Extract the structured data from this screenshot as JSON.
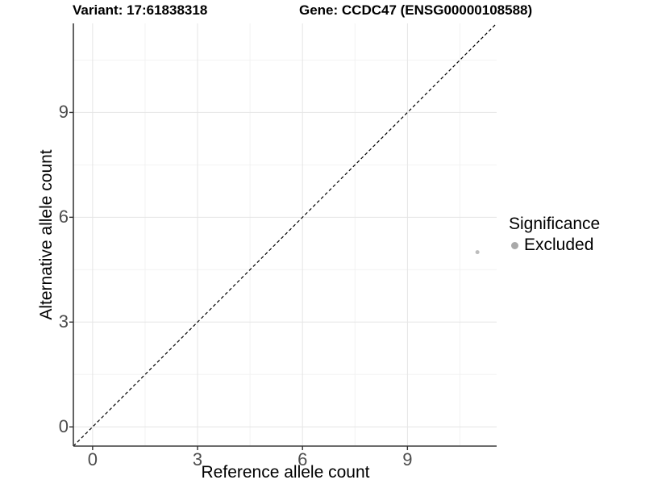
{
  "chart_data": {
    "type": "scatter",
    "titles": {
      "variant": "Variant: 17:61838318",
      "gene": "Gene: CCDC47 (ENSG00000108588)"
    },
    "xlabel": "Reference allele count",
    "ylabel": "Alternative allele count",
    "xlim": [
      -0.55,
      11.55
    ],
    "ylim": [
      -0.55,
      11.55
    ],
    "x_major_ticks": [
      0,
      3,
      6,
      9
    ],
    "y_major_ticks": [
      0,
      3,
      6,
      9
    ],
    "x_minor_ticks": [
      1.5,
      4.5,
      7.5,
      10.5
    ],
    "y_minor_ticks": [
      1.5,
      4.5,
      7.5,
      10.5
    ],
    "grid": "major+minor",
    "identity_line": {
      "style": "dashed",
      "slope": 1,
      "intercept": 0,
      "from": [
        -0.55,
        -0.55
      ],
      "to": [
        11.55,
        11.55
      ],
      "color": "#000000"
    },
    "series": [
      {
        "name": "Excluded",
        "color": "#bdbdbd",
        "points": [
          {
            "x": 11,
            "y": 5
          }
        ]
      }
    ],
    "legend": {
      "title": "Significance",
      "position": "right",
      "entries": [
        {
          "label": "Excluded",
          "color": "#a9a9a9"
        }
      ]
    }
  },
  "colors": {
    "background": "#ffffff",
    "grid_major": "#e5e5e5",
    "grid_minor": "#f2f2f2",
    "axis_line": "#3c3c3c",
    "tick_mark": "#333333",
    "tick_label": "#4d4d4d",
    "text": "#000000"
  }
}
